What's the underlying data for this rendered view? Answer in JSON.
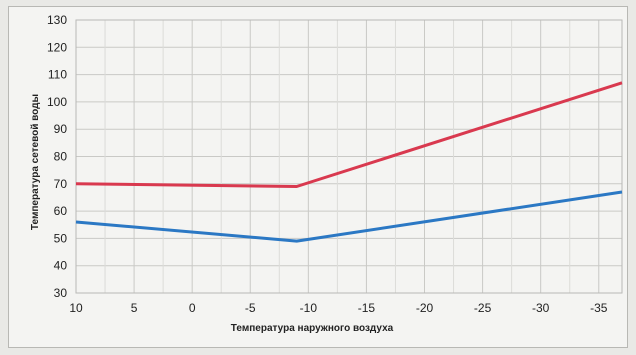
{
  "chart_data": {
    "type": "line",
    "title": "",
    "xlabel": "Температура наружного воздуха",
    "ylabel": "Температура сетевой воды",
    "x_ticks": [
      10,
      5,
      0,
      -5,
      -10,
      -15,
      -20,
      -25,
      -30,
      -35
    ],
    "x_tick_labels": [
      "10",
      "5",
      "0",
      "-5",
      "-10",
      "-15",
      "-20",
      "-25",
      "-30",
      "-35"
    ],
    "xlim": [
      10,
      -37
    ],
    "y_ticks": [
      30,
      40,
      50,
      60,
      70,
      80,
      90,
      100,
      110,
      120,
      130
    ],
    "ylim": [
      30,
      130
    ],
    "grid": true,
    "series": [
      {
        "color": "#d9394f",
        "x": [
          10,
          -9,
          -37
        ],
        "y": [
          70,
          69,
          107
        ]
      },
      {
        "color": "#2b78c4",
        "x": [
          10,
          -9,
          -37
        ],
        "y": [
          56,
          49,
          67
        ]
      }
    ]
  }
}
